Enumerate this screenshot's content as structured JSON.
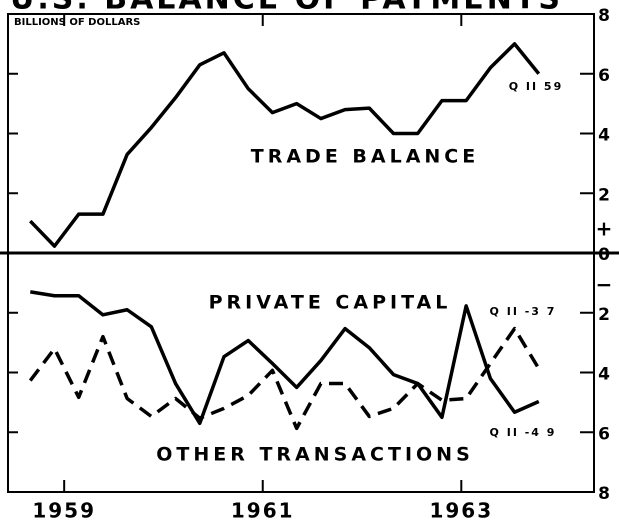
{
  "chart_data": {
    "type": "line",
    "title": "U.S. BALANCE OF PAYMENTS",
    "y_axis_label": "BILLIONS OF DOLLARS",
    "annotations": [
      "Q II 59",
      "Q II -3 7",
      "Q II -4 9",
      "+",
      "−"
    ],
    "x": [
      1959,
      1959.25,
      1959.5,
      1959.75,
      1960,
      1960.25,
      1960.5,
      1960.75,
      1961,
      1961.25,
      1961.5,
      1961.75,
      1962,
      1962.25,
      1962.5,
      1962.75,
      1963,
      1963.25,
      1963.5,
      1963.75,
      1964,
      1964.25
    ],
    "xlim": [
      1958.77,
      1964.82
    ],
    "xticks": [
      {
        "value": 1959.35,
        "label": "1959"
      },
      {
        "value": 1961.4,
        "label": "1961"
      },
      {
        "value": 1963.45,
        "label": "1963"
      }
    ],
    "ylim": [
      -8,
      8
    ],
    "yticks": [
      {
        "value": -8,
        "label": "8"
      },
      {
        "value": -6,
        "label": "6"
      },
      {
        "value": -4,
        "label": "4"
      },
      {
        "value": -2,
        "label": "2"
      },
      0,
      2,
      4,
      6,
      8
    ],
    "series": [
      {
        "name": "TRADE BALANCE",
        "color": "#000000",
        "dash": false,
        "values": [
          1.07,
          0.23,
          1.3,
          1.3,
          3.3,
          4.2,
          5.2,
          6.3,
          6.7,
          5.5,
          4.7,
          5.0,
          4.5,
          4.8,
          4.85,
          4.0,
          4.0,
          5.1,
          5.1,
          6.2,
          7.0,
          6.0
        ]
      },
      {
        "name": "PRIVATE CAPITAL",
        "color": "#000000",
        "dash": false,
        "values": [
          -1.3,
          -1.43,
          -1.43,
          -2.07,
          -1.9,
          -2.47,
          -4.37,
          -5.7,
          -3.47,
          -2.93,
          -3.7,
          -4.5,
          -3.6,
          -2.53,
          -3.17,
          -4.07,
          -4.37,
          -5.5,
          -1.77,
          -4.2,
          -5.33,
          -4.97
        ]
      },
      {
        "name": "OTHER TRANSACTIONS",
        "color": "#000000",
        "dash": true,
        "values": [
          -4.27,
          -3.2,
          -4.83,
          -2.8,
          -4.87,
          -5.47,
          -4.87,
          -5.53,
          -5.2,
          -4.77,
          -3.93,
          -5.87,
          -4.37,
          -4.37,
          -5.47,
          -5.2,
          -4.37,
          -4.93,
          -4.87,
          -3.7,
          -2.53,
          -3.87
        ]
      }
    ]
  }
}
